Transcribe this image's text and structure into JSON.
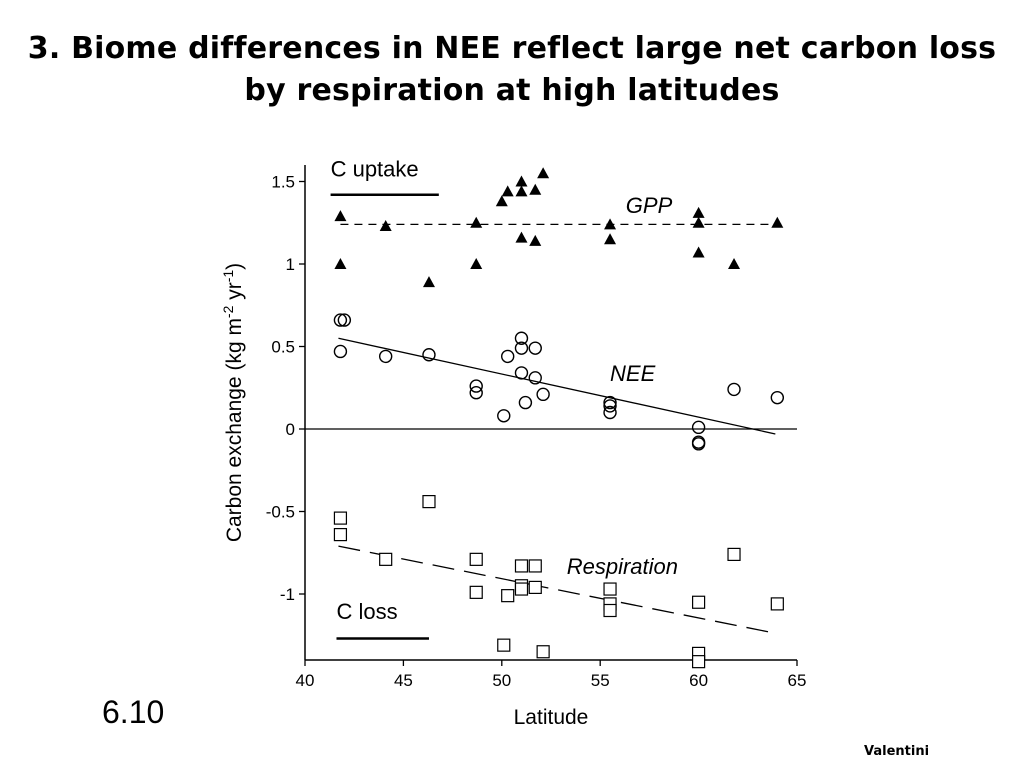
{
  "slide": {
    "title_line1": "3. Biome differences in NEE reflect large net carbon loss",
    "title_line2": "by respiration at high latitudes",
    "figure_number": "6.10",
    "credit": "Valentini"
  },
  "chart_data": {
    "type": "scatter",
    "xlabel": "Latitude",
    "ylabel": "Carbon exchange (kg m-2 yr-1)",
    "ylabel_parts": [
      "Carbon exchange (kg m",
      "-2",
      " yr",
      "-1",
      ")"
    ],
    "xlim": [
      40,
      65
    ],
    "ylim": [
      -1.4,
      1.6
    ],
    "x_ticks": [
      40,
      45,
      50,
      55,
      60,
      65
    ],
    "y_ticks": [
      -1,
      -0.5,
      0,
      0.5,
      1,
      1.5
    ],
    "grid": false,
    "zero_line": true,
    "annotations": [
      {
        "text": "C uptake",
        "x": 41.3,
        "y": 1.53,
        "underline_to": 46.8,
        "underline_y": 1.42
      },
      {
        "text": "C loss",
        "x": 41.6,
        "y": -1.15,
        "underline_to": 46.3,
        "underline_y": -1.27
      }
    ],
    "series": [
      {
        "name": "GPP",
        "marker": "filled-triangle",
        "points": [
          [
            41.8,
            1.29
          ],
          [
            41.8,
            1.0
          ],
          [
            44.1,
            1.23
          ],
          [
            46.3,
            0.89
          ],
          [
            48.7,
            1.25
          ],
          [
            48.7,
            1.0
          ],
          [
            50.0,
            1.38
          ],
          [
            50.3,
            1.44
          ],
          [
            51.0,
            1.5
          ],
          [
            51.0,
            1.44
          ],
          [
            51.7,
            1.45
          ],
          [
            52.1,
            1.55
          ],
          [
            51.0,
            1.16
          ],
          [
            51.7,
            1.14
          ],
          [
            55.5,
            1.24
          ],
          [
            55.5,
            1.15
          ],
          [
            60.0,
            1.31
          ],
          [
            60.0,
            1.25
          ],
          [
            60.0,
            1.07
          ],
          [
            61.8,
            1.0
          ],
          [
            64.0,
            1.25
          ]
        ],
        "fit": {
          "style": "short-dash",
          "x": [
            41.8,
            64.2
          ],
          "y": [
            1.24,
            1.24
          ]
        }
      },
      {
        "name": "NEE",
        "marker": "open-circle",
        "points": [
          [
            41.8,
            0.66
          ],
          [
            42.0,
            0.66
          ],
          [
            41.8,
            0.47
          ],
          [
            44.1,
            0.44
          ],
          [
            46.3,
            0.45
          ],
          [
            48.7,
            0.26
          ],
          [
            48.7,
            0.22
          ],
          [
            50.1,
            0.08
          ],
          [
            50.3,
            0.44
          ],
          [
            51.0,
            0.55
          ],
          [
            51.0,
            0.49
          ],
          [
            51.0,
            0.34
          ],
          [
            51.2,
            0.16
          ],
          [
            51.7,
            0.49
          ],
          [
            51.7,
            0.31
          ],
          [
            52.1,
            0.21
          ],
          [
            55.5,
            0.16
          ],
          [
            55.5,
            0.14
          ],
          [
            55.5,
            0.1
          ],
          [
            60.0,
            0.01
          ],
          [
            60.0,
            -0.08
          ],
          [
            60.0,
            -0.09
          ],
          [
            61.8,
            0.24
          ],
          [
            64.0,
            0.19
          ]
        ],
        "fit": {
          "style": "solid",
          "x": [
            41.7,
            63.9
          ],
          "y": [
            0.55,
            -0.03
          ]
        }
      },
      {
        "name": "Respiration",
        "marker": "open-square",
        "points": [
          [
            41.8,
            -0.54
          ],
          [
            41.8,
            -0.64
          ],
          [
            44.1,
            -0.79
          ],
          [
            46.3,
            -0.44
          ],
          [
            48.7,
            -0.79
          ],
          [
            48.7,
            -0.99
          ],
          [
            50.1,
            -1.31
          ],
          [
            50.3,
            -1.01
          ],
          [
            51.0,
            -0.83
          ],
          [
            51.0,
            -0.95
          ],
          [
            51.0,
            -0.97
          ],
          [
            51.7,
            -0.83
          ],
          [
            51.7,
            -0.96
          ],
          [
            52.1,
            -1.35
          ],
          [
            55.5,
            -0.97
          ],
          [
            55.5,
            -1.06
          ],
          [
            55.5,
            -1.1
          ],
          [
            60.0,
            -1.05
          ],
          [
            60.0,
            -1.36
          ],
          [
            60.0,
            -1.41
          ],
          [
            61.8,
            -0.76
          ],
          [
            64.0,
            -1.06
          ]
        ],
        "fit": {
          "style": "long-dash",
          "x": [
            41.7,
            64.0
          ],
          "y": [
            -0.71,
            -1.24
          ]
        }
      }
    ],
    "series_labels": [
      {
        "text": "GPP",
        "x": 56.3,
        "y": 1.31
      },
      {
        "text": "NEE",
        "x": 55.5,
        "y": 0.29
      },
      {
        "text": "Respiration",
        "x": 53.3,
        "y": -0.88
      }
    ]
  }
}
